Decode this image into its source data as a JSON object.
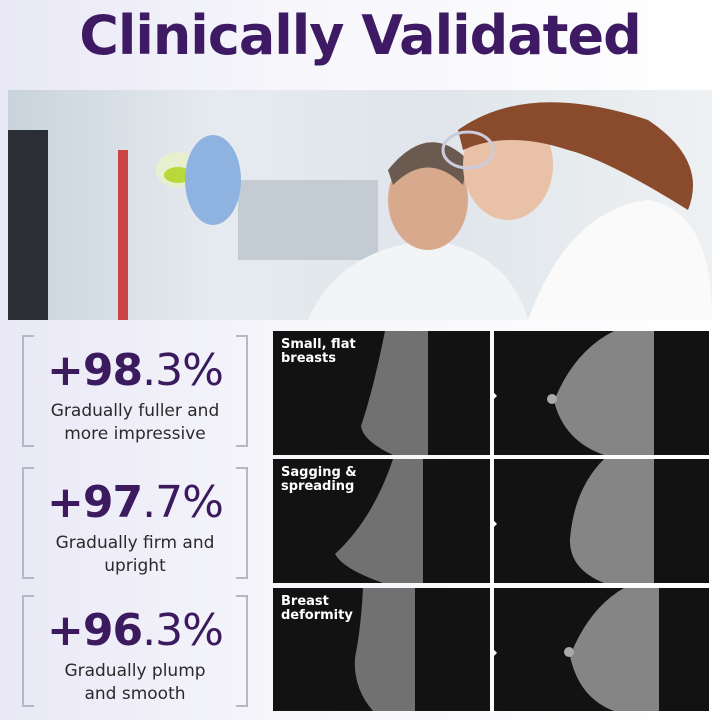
{
  "title": "Clinically Validated",
  "stats": [
    {
      "value_int": "+98",
      "value_dec": ".3%",
      "description_line1": "Gradually fuller and",
      "description_line2": "more impressive"
    },
    {
      "value_int": "+97",
      "value_dec": ".7%",
      "description_line1": "Gradually firm and",
      "description_line2": "upright"
    },
    {
      "value_int": "+96",
      "value_dec": ".3%",
      "description_line1": "Gradually plump",
      "description_line2": "and smooth"
    }
  ],
  "scans": [
    {
      "label_line1": "Small, flat",
      "label_line2": "breasts"
    },
    {
      "label_line1": "Sagging &",
      "label_line2": "spreading"
    },
    {
      "label_line1": "Breast",
      "label_line2": "deformity"
    }
  ],
  "colors": {
    "brand": "#3d1a63",
    "scan_bg": "#121212"
  }
}
